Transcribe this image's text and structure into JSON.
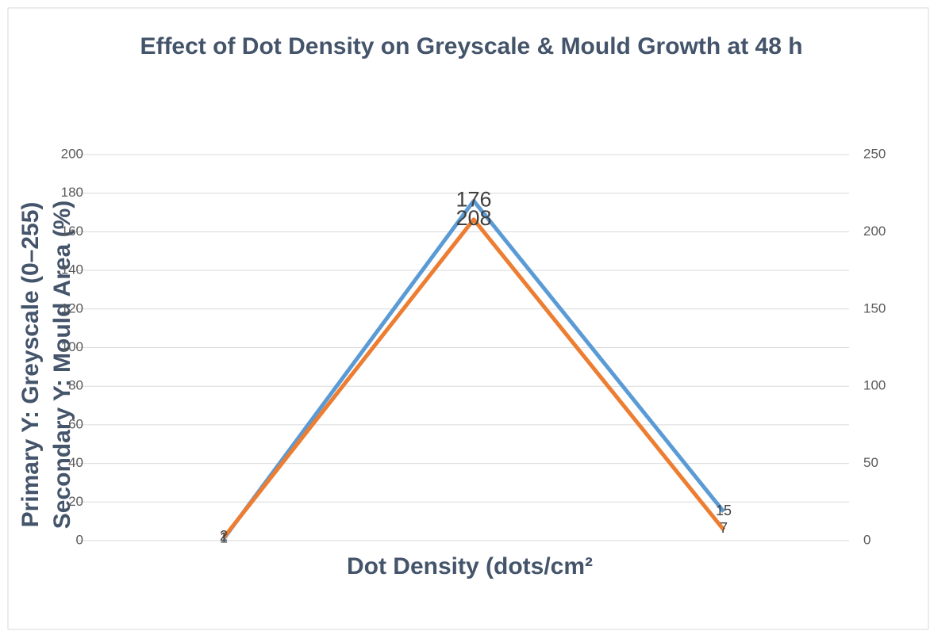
{
  "chart_data": {
    "type": "line",
    "title": "Effect of Dot Density on Greyscale & Mould Growth at 48 h",
    "xlabel": "Dot Density (dots/cm²",
    "ylabel": "Primary Y: Greyscale (0–255)",
    "y2label": "Secondary Y: Mould Area (%)",
    "categories": [
      null,
      null,
      null
    ],
    "series": [
      {
        "color": "#5b9bd5",
        "values": [
          1,
          176,
          15
        ]
      },
      {
        "color": "#ed7d31",
        "axis": "y2",
        "values": [
          2,
          208,
          7
        ]
      }
    ],
    "ylim": [
      0,
      200
    ],
    "yticks": [
      0,
      20,
      40,
      60,
      80,
      100,
      120,
      140,
      160,
      180,
      200
    ],
    "y2lim": [
      0,
      250
    ],
    "y2ticks": [
      0,
      50,
      100,
      150,
      200,
      250
    ],
    "grid": true
  }
}
